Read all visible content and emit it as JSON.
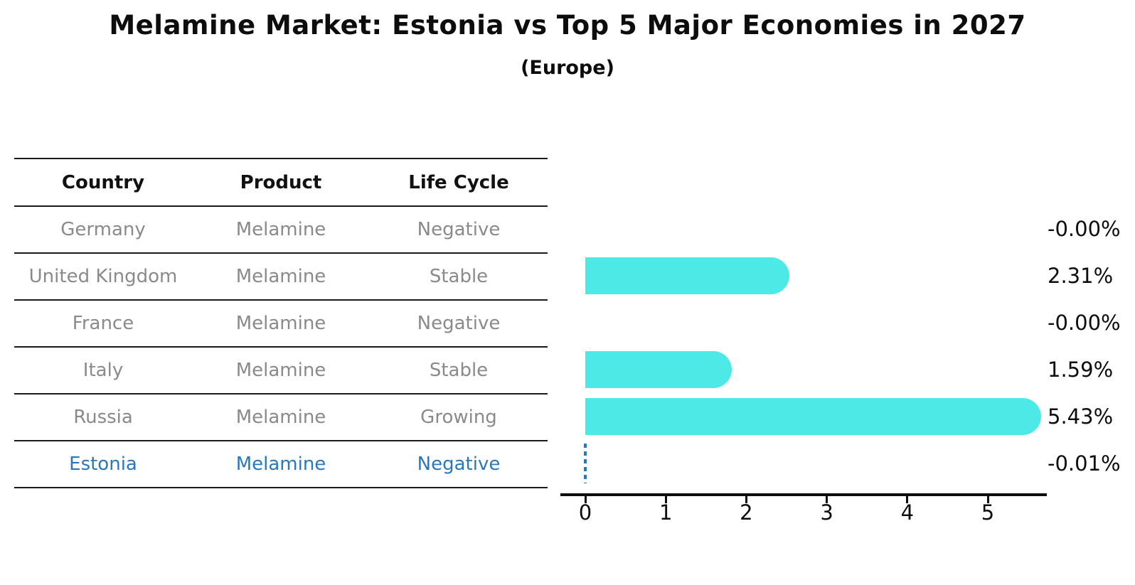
{
  "title": "Melamine Market: Estonia vs Top 5 Major Economies in 2027",
  "subtitle": "(Europe)",
  "table": {
    "headers": [
      "Country",
      "Product",
      "Life Cycle"
    ],
    "rows": [
      {
        "country": "Germany",
        "product": "Melamine",
        "life_cycle": "Negative",
        "highlight": false
      },
      {
        "country": "United Kingdom",
        "product": "Melamine",
        "life_cycle": "Stable",
        "highlight": false
      },
      {
        "country": "France",
        "product": "Melamine",
        "life_cycle": "Negative",
        "highlight": false
      },
      {
        "country": "Italy",
        "product": "Melamine",
        "life_cycle": "Stable",
        "highlight": false
      },
      {
        "country": "Russia",
        "product": "Melamine",
        "life_cycle": "Growing",
        "highlight": false
      },
      {
        "country": "Estonia",
        "product": "Melamine",
        "life_cycle": "Negative",
        "highlight": true
      }
    ]
  },
  "chart_data": {
    "type": "bar",
    "orientation": "horizontal",
    "title": "Melamine Market: Estonia vs Top 5 Major Economies in 2027",
    "subtitle": "(Europe)",
    "categories": [
      "Germany",
      "United Kingdom",
      "France",
      "Italy",
      "Russia",
      "Estonia"
    ],
    "values": [
      -0.0,
      2.31,
      -0.0,
      1.59,
      5.43,
      -0.01
    ],
    "value_labels": [
      "-0.00%",
      "2.31%",
      "-0.00%",
      "1.59%",
      "5.43%",
      "-0.01%"
    ],
    "unit": "%",
    "x_ticks": [
      "0",
      "1",
      "2",
      "3",
      "4",
      "5"
    ],
    "xlim": [
      -0.31,
      5.73
    ],
    "grid": false,
    "legend": "none",
    "bar_color": "#4DE9E6",
    "highlight": {
      "index": 5,
      "category": "Estonia",
      "style": "dashed-blue-line",
      "color": "#2878BE"
    }
  },
  "colors": {
    "bar": "#4DE9E6",
    "highlight_blue": "#2878BE",
    "row_text_gray": "#8A8A8A",
    "axis_black": "#0D0D0D"
  }
}
